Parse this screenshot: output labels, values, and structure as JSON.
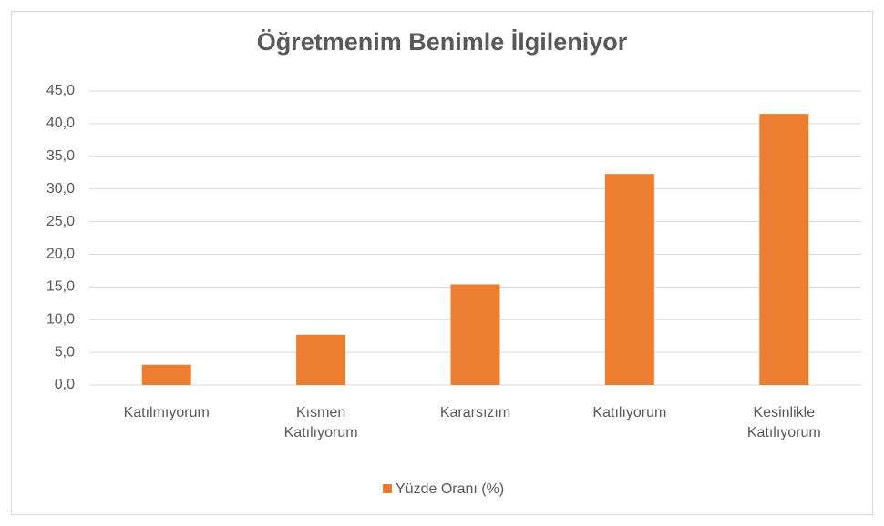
{
  "chart_data": {
    "type": "bar",
    "title": "Öğretmenim Benimle İlgileniyor",
    "categories": [
      "Katılmıyorum",
      "Kısmen Katılıyorum",
      "Kararsızım",
      "Katılıyorum",
      "Kesinlikle Katılıyorum"
    ],
    "series": [
      {
        "name": "Yüzde Oranı (%)",
        "color": "#ed7d31",
        "values": [
          3.1,
          7.7,
          15.4,
          32.3,
          41.5
        ]
      }
    ],
    "ylim": [
      0,
      45
    ],
    "yticks": [
      {
        "value": 0,
        "label": "0,0"
      },
      {
        "value": 5,
        "label": "5,0"
      },
      {
        "value": 10,
        "label": "10,0"
      },
      {
        "value": 15,
        "label": "15,0"
      },
      {
        "value": 20,
        "label": "20,0"
      },
      {
        "value": 25,
        "label": "25,0"
      },
      {
        "value": 30,
        "label": "30,0"
      },
      {
        "value": 35,
        "label": "35,0"
      },
      {
        "value": 40,
        "label": "40,0"
      },
      {
        "value": 45,
        "label": "45,0"
      }
    ],
    "grid": true,
    "legend": "bottom"
  }
}
